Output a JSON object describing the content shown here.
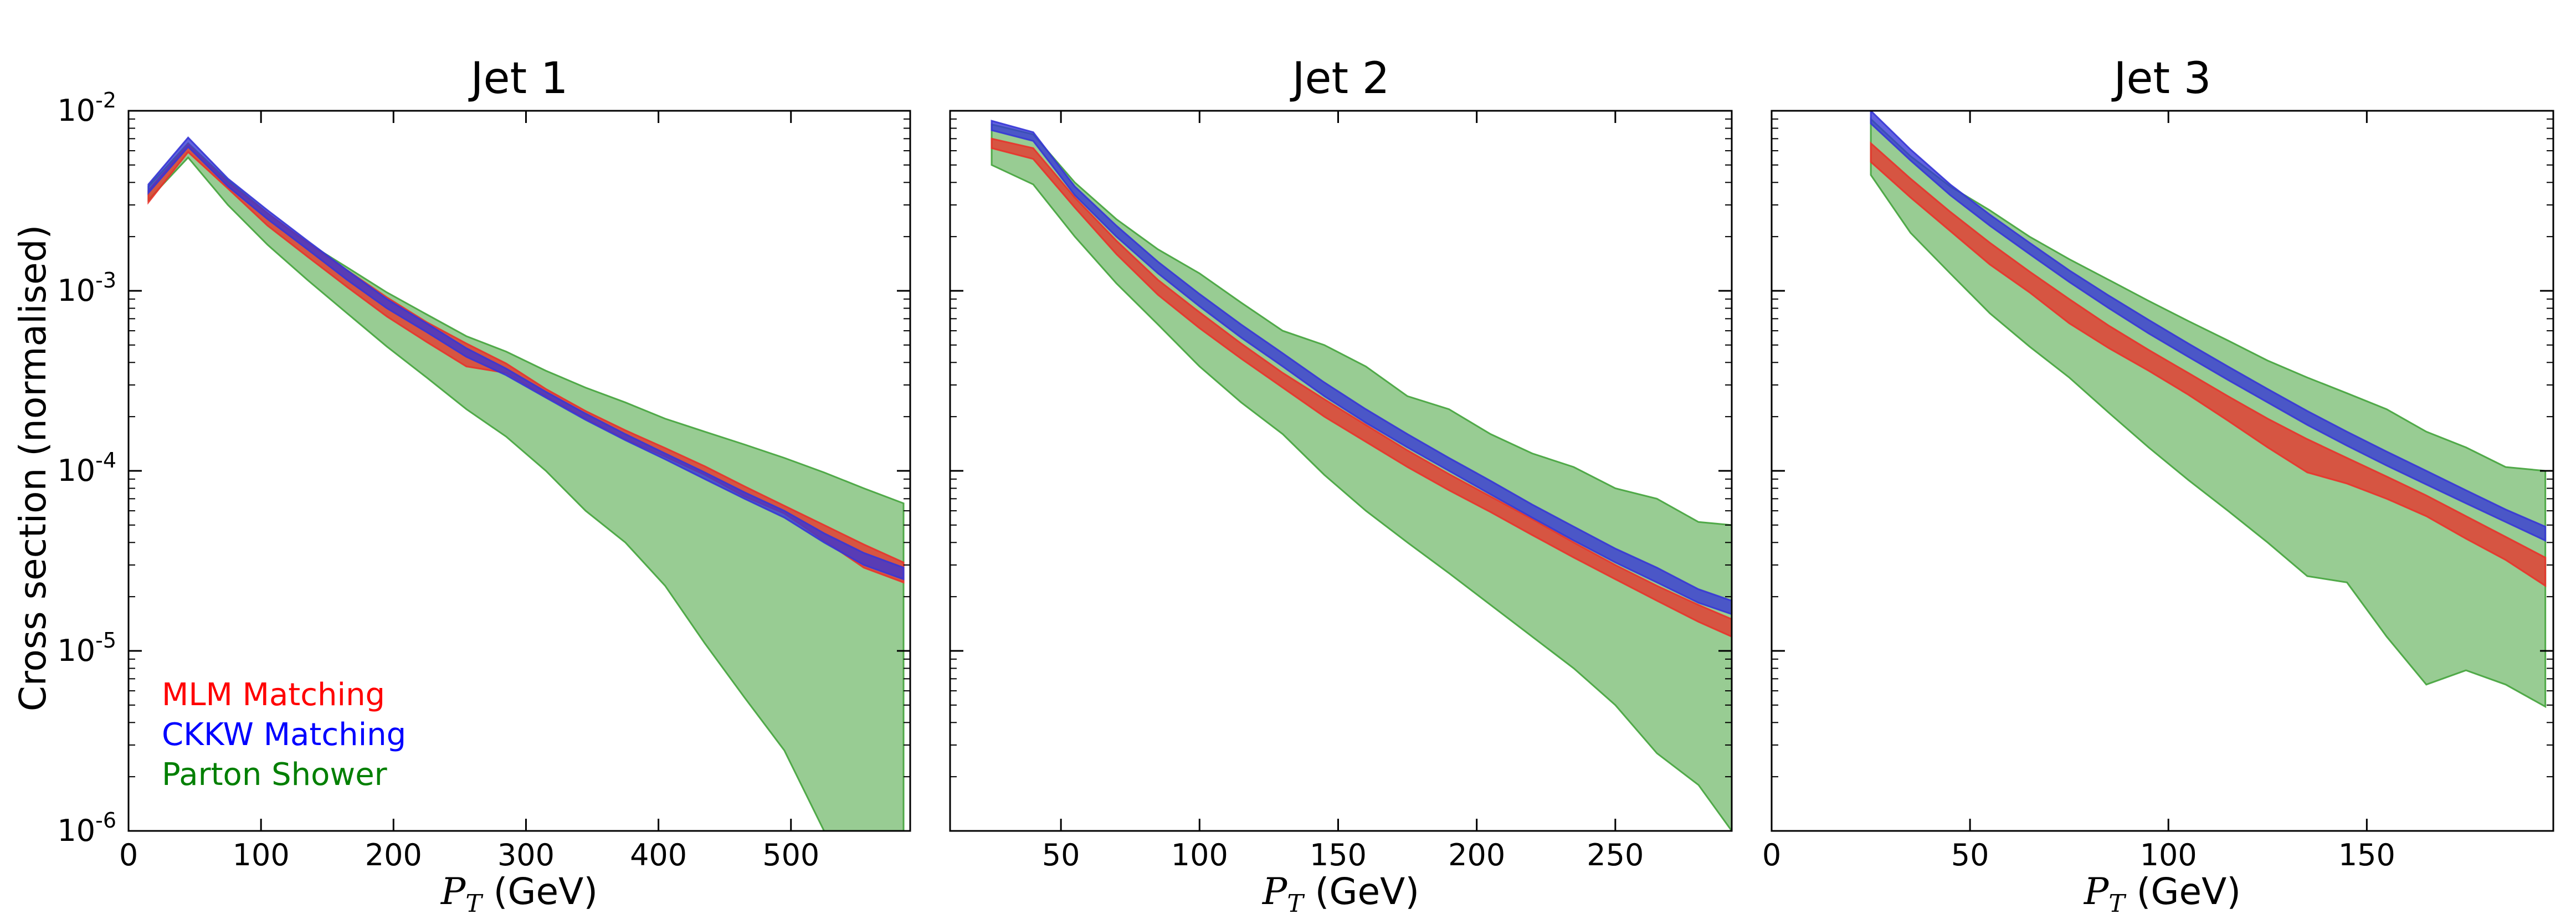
{
  "figure": {
    "ylabel": "Cross section (normalised)",
    "xlabel_symbol": "P",
    "xlabel_subscript": "T",
    "xlabel_unit": " (GeV)",
    "colors": {
      "MLM Matching": "#e8332b",
      "CKKW Matching": "#3636d6",
      "Parton Shower": "#43a33b",
      "MLM Matching_text": "#ff0000",
      "CKKW Matching_text": "#0000ff",
      "Parton Shower_text": "#007f00"
    },
    "legend": {
      "placement": "bottom-left of first panel",
      "entries": [
        "MLM Matching",
        "CKKW Matching",
        "Parton Shower"
      ]
    }
  },
  "chart_data": [
    {
      "type": "area",
      "title": "Jet 1",
      "xlabel": "P_T (GeV)",
      "ylabel": "Cross section (normalised)",
      "yscale": "log",
      "xlim": [
        0,
        590
      ],
      "ylim": [
        1e-06,
        0.01
      ],
      "xticks": [
        0,
        100,
        200,
        300,
        400,
        500
      ],
      "xtick_labels": [
        "0",
        "100",
        "200",
        "300",
        "400",
        "500"
      ],
      "ytick_exponents": [
        -2,
        -3,
        -4,
        -5,
        -6
      ],
      "show_yticklabels": true,
      "x": [
        15,
        45,
        75,
        105,
        135,
        165,
        195,
        225,
        255,
        285,
        315,
        345,
        375,
        405,
        435,
        465,
        495,
        525,
        555,
        585
      ],
      "series": [
        {
          "name": "Parton Shower",
          "lower": [
            0.0032,
            0.0055,
            0.003,
            0.0018,
            0.00115,
            0.00075,
            0.00049,
            0.00033,
            0.00022,
            0.000155,
            0.0001,
            6e-05,
            4e-05,
            2.3e-05,
            1.1e-05,
            5.5e-06,
            2.8e-06,
            1e-06,
            1e-06,
            1e-06
          ],
          "upper": [
            0.0038,
            0.0066,
            0.0041,
            0.0027,
            0.00185,
            0.00135,
            0.00098,
            0.00074,
            0.00056,
            0.00046,
            0.00036,
            0.00029,
            0.00024,
            0.000195,
            0.000165,
            0.00014,
            0.000118,
            9.8e-05,
            8e-05,
            6.6e-05
          ]
        },
        {
          "name": "MLM Matching",
          "lower": [
            0.0031,
            0.0059,
            0.0037,
            0.0023,
            0.00155,
            0.00105,
            0.00072,
            0.00052,
            0.00038,
            0.00035,
            0.00026,
            0.000195,
            0.00015,
            0.00012,
            9.5e-05,
            7.2e-05,
            5.8e-05,
            4.1e-05,
            2.9e-05,
            2.4e-05
          ],
          "upper": [
            0.0036,
            0.0065,
            0.004,
            0.0027,
            0.00185,
            0.0013,
            0.00092,
            0.00067,
            0.00051,
            0.000395,
            0.000285,
            0.000215,
            0.000168,
            0.000134,
            0.000106,
            8.2e-05,
            6.4e-05,
            5e-05,
            3.9e-05,
            3.1e-05
          ]
        },
        {
          "name": "CKKW Matching",
          "lower": [
            0.0035,
            0.0063,
            0.0038,
            0.0025,
            0.0017,
            0.00115,
            0.0008,
            0.00059,
            0.00043,
            0.00034,
            0.000255,
            0.000192,
            0.000148,
            0.000116,
            9e-05,
            7e-05,
            5.5e-05,
            4e-05,
            3e-05,
            2.5e-05
          ],
          "upper": [
            0.0039,
            0.0071,
            0.0042,
            0.0028,
            0.0019,
            0.0013,
            0.0009,
            0.00066,
            0.00048,
            0.00037,
            0.000275,
            0.000208,
            0.00016,
            0.000125,
            9.8e-05,
            7.6e-05,
            6e-05,
            4.5e-05,
            3.5e-05,
            2.9e-05
          ]
        }
      ]
    },
    {
      "type": "area",
      "title": "Jet 2",
      "xlabel": "P_T (GeV)",
      "ylabel": "",
      "yscale": "log",
      "xlim": [
        10,
        292
      ],
      "ylim": [
        1e-06,
        0.01
      ],
      "xticks": [
        50,
        100,
        150,
        200,
        250
      ],
      "xtick_labels": [
        "50",
        "100",
        "150",
        "200",
        "250"
      ],
      "ytick_exponents": [
        -2,
        -3,
        -4,
        -5,
        -6
      ],
      "show_yticklabels": false,
      "x": [
        25,
        40,
        55,
        70,
        85,
        100,
        115,
        130,
        145,
        160,
        175,
        190,
        205,
        220,
        235,
        250,
        265,
        280,
        292
      ],
      "series": [
        {
          "name": "Parton Shower",
          "lower": [
            0.005,
            0.0039,
            0.002,
            0.0011,
            0.00065,
            0.00038,
            0.00024,
            0.00016,
            9.5e-05,
            6e-05,
            4e-05,
            2.7e-05,
            1.8e-05,
            1.2e-05,
            8e-06,
            5e-06,
            2.7e-06,
            1.8e-06,
            1e-06
          ],
          "upper": [
            0.0084,
            0.0074,
            0.004,
            0.0025,
            0.0017,
            0.00125,
            0.00086,
            0.0006,
            0.0005,
            0.00038,
            0.00026,
            0.00022,
            0.00016,
            0.000125,
            0.000105,
            8e-05,
            7e-05,
            5.2e-05,
            5e-05
          ]
        },
        {
          "name": "MLM Matching",
          "lower": [
            0.0062,
            0.0054,
            0.0029,
            0.0016,
            0.00095,
            0.00062,
            0.00042,
            0.00029,
            0.0002,
            0.000145,
            0.000105,
            7.8e-05,
            5.9e-05,
            4.4e-05,
            3.3e-05,
            2.5e-05,
            1.9e-05,
            1.45e-05,
            1.2e-05
          ],
          "upper": [
            0.007,
            0.0062,
            0.0033,
            0.0019,
            0.00115,
            0.00076,
            0.00051,
            0.00035,
            0.00025,
            0.00018,
            0.00013,
            9.6e-05,
            7.2e-05,
            5.4e-05,
            4e-05,
            3e-05,
            2.3e-05,
            1.8e-05,
            1.5e-05
          ]
        },
        {
          "name": "CKKW Matching",
          "lower": [
            0.0078,
            0.0068,
            0.0034,
            0.002,
            0.00125,
            0.00082,
            0.00055,
            0.00038,
            0.00026,
            0.000185,
            0.000135,
            0.0001,
            7.4e-05,
            5.5e-05,
            4.1e-05,
            3.1e-05,
            2.4e-05,
            1.85e-05,
            1.6e-05
          ],
          "upper": [
            0.0088,
            0.0076,
            0.0038,
            0.0023,
            0.00145,
            0.00096,
            0.00065,
            0.00045,
            0.00031,
            0.00022,
            0.00016,
            0.000118,
            8.8e-05,
            6.5e-05,
            4.9e-05,
            3.7e-05,
            2.9e-05,
            2.2e-05,
            1.9e-05
          ]
        }
      ]
    },
    {
      "type": "area",
      "title": "Jet 3",
      "xlabel": "P_T (GeV)",
      "ylabel": "",
      "yscale": "log",
      "xlim": [
        0,
        197
      ],
      "ylim": [
        1e-06,
        0.01
      ],
      "xticks": [
        0,
        50,
        100,
        150
      ],
      "xtick_labels": [
        "0",
        "50",
        "100",
        "150"
      ],
      "ytick_exponents": [
        -2,
        -3,
        -4,
        -5,
        -6
      ],
      "show_yticklabels": false,
      "x": [
        25,
        35,
        45,
        55,
        65,
        75,
        85,
        95,
        105,
        115,
        125,
        135,
        145,
        155,
        165,
        175,
        185,
        195
      ],
      "series": [
        {
          "name": "Parton Shower",
          "lower": [
            0.0044,
            0.0021,
            0.00125,
            0.00075,
            0.00049,
            0.00033,
            0.00021,
            0.000135,
            8.9e-05,
            6e-05,
            4e-05,
            2.6e-05,
            2.4e-05,
            1.2e-05,
            6.5e-06,
            7.8e-06,
            6.5e-06,
            4.9e-06
          ],
          "upper": [
            0.009,
            0.0056,
            0.0038,
            0.0028,
            0.002,
            0.0015,
            0.00115,
            0.00088,
            0.00068,
            0.00053,
            0.00041,
            0.00033,
            0.00027,
            0.00022,
            0.000165,
            0.000135,
            0.000105,
            0.0001
          ]
        },
        {
          "name": "MLM Matching",
          "lower": [
            0.0052,
            0.0033,
            0.00215,
            0.0014,
            0.00098,
            0.00066,
            0.00048,
            0.00036,
            0.000265,
            0.00019,
            0.000135,
            9.8e-05,
            8.5e-05,
            7e-05,
            5.6e-05,
            4.2e-05,
            3.2e-05,
            2.3e-05
          ],
          "upper": [
            0.0066,
            0.0042,
            0.00275,
            0.00185,
            0.00128,
            0.0009,
            0.00064,
            0.00047,
            0.00035,
            0.00026,
            0.000195,
            0.00015,
            0.000118,
            9.3e-05,
            7.3e-05,
            5.6e-05,
            4.3e-05,
            3.3e-05
          ]
        },
        {
          "name": "CKKW Matching",
          "lower": [
            0.0085,
            0.0053,
            0.0034,
            0.0023,
            0.0016,
            0.00112,
            0.0008,
            0.00058,
            0.00043,
            0.00032,
            0.00024,
            0.00018,
            0.000138,
            0.000107,
            8.4e-05,
            6.6e-05,
            5.2e-05,
            4.1e-05
          ],
          "upper": [
            0.01,
            0.0061,
            0.0039,
            0.00265,
            0.00185,
            0.0013,
            0.00094,
            0.00069,
            0.00051,
            0.00038,
            0.000285,
            0.000215,
            0.000165,
            0.000128,
            0.0001,
            7.8e-05,
            6.1e-05,
            4.9e-05
          ]
        }
      ]
    }
  ]
}
